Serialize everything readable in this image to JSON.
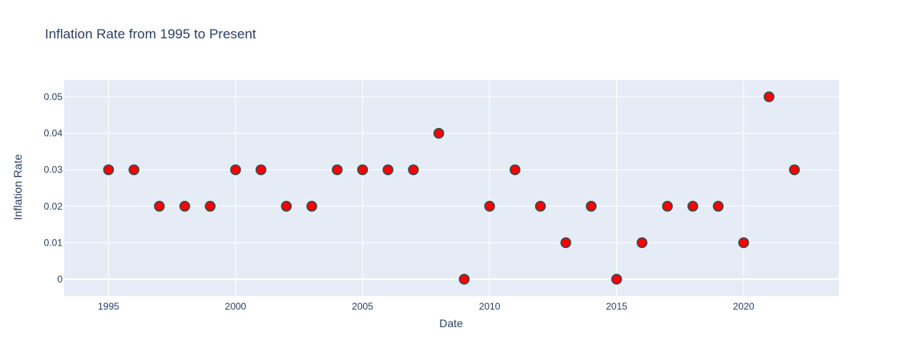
{
  "chart_data": {
    "type": "scatter",
    "title": "Inflation Rate from 1995 to Present",
    "xlabel": "Date",
    "ylabel": "Inflation Rate",
    "x": [
      1995,
      1996,
      1997,
      1998,
      1999,
      2000,
      2001,
      2002,
      2003,
      2004,
      2005,
      2006,
      2007,
      2008,
      2009,
      2010,
      2011,
      2012,
      2013,
      2014,
      2015,
      2016,
      2017,
      2018,
      2019,
      2020,
      2021,
      2022
    ],
    "y": [
      0.03,
      0.03,
      0.02,
      0.02,
      0.02,
      0.03,
      0.03,
      0.02,
      0.02,
      0.03,
      0.03,
      0.03,
      0.03,
      0.04,
      0,
      0.02,
      0.03,
      0.02,
      0.01,
      0.02,
      0,
      0.01,
      0.02,
      0.02,
      0.02,
      0.01,
      0.05,
      0.03
    ],
    "xlim": [
      1993.25,
      2023.75
    ],
    "ylim": [
      -0.0046,
      0.0546
    ],
    "xticks": [
      "1995",
      "2000",
      "2005",
      "2010",
      "2015",
      "2020"
    ],
    "yticks": [
      "0",
      "0.01",
      "0.02",
      "0.03",
      "0.04",
      "0.05"
    ],
    "grid": true,
    "colors": {
      "marker_fill": "#ff0000",
      "marker_edge": "#2f4f4f",
      "plot_bg": "#e5ecf6",
      "grid": "#ffffff",
      "text": "#2a3f5f"
    }
  }
}
